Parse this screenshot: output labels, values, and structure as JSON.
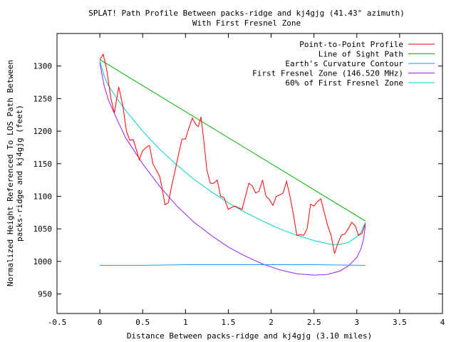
{
  "chart_data": {
    "type": "line",
    "title": "SPLAT! Path Profile Between packs-ridge and kj4gjg (41.43° azimuth)",
    "subtitle": "With First Fresnel Zone",
    "xlabel": "Distance Between packs-ridge and kj4gjg (3.10 miles)",
    "ylabel_lines": [
      "Normalized Height Referenced To LOS Path Between",
      "packs-ridge and kj4gjg (feet)"
    ],
    "xlim": [
      -0.5,
      4
    ],
    "ylim": [
      920,
      1350
    ],
    "x_ticks": [
      "-0.5",
      "0",
      "0.5",
      "1",
      "1.5",
      "2",
      "2.5",
      "3",
      "3.5",
      "4"
    ],
    "y_ticks": [
      "950",
      "1000",
      "1050",
      "1100",
      "1150",
      "1200",
      "1250",
      "1300"
    ],
    "legend_position": "top-right",
    "grid": false,
    "series": [
      {
        "name": "Point-to-Point Profile",
        "color": "#ff0000",
        "points": [
          [
            0,
            1310
          ],
          [
            0.04,
            1318
          ],
          [
            0.08,
            1295
          ],
          [
            0.13,
            1250
          ],
          [
            0.17,
            1228
          ],
          [
            0.22,
            1268
          ],
          [
            0.27,
            1238
          ],
          [
            0.31,
            1200
          ],
          [
            0.35,
            1186
          ],
          [
            0.39,
            1187
          ],
          [
            0.43,
            1170
          ],
          [
            0.46,
            1156
          ],
          [
            0.5,
            1170
          ],
          [
            0.55,
            1176
          ],
          [
            0.58,
            1178
          ],
          [
            0.62,
            1150
          ],
          [
            0.66,
            1140
          ],
          [
            0.7,
            1130
          ],
          [
            0.73,
            1110
          ],
          [
            0.76,
            1087
          ],
          [
            0.8,
            1090
          ],
          [
            0.84,
            1117
          ],
          [
            0.88,
            1140
          ],
          [
            0.92,
            1165
          ],
          [
            0.96,
            1188
          ],
          [
            1.0,
            1188
          ],
          [
            1.04,
            1205
          ],
          [
            1.08,
            1220
          ],
          [
            1.12,
            1210
          ],
          [
            1.15,
            1207
          ],
          [
            1.18,
            1222
          ],
          [
            1.21,
            1190
          ],
          [
            1.25,
            1140
          ],
          [
            1.29,
            1120
          ],
          [
            1.33,
            1120
          ],
          [
            1.37,
            1125
          ],
          [
            1.41,
            1100
          ],
          [
            1.45,
            1098
          ],
          [
            1.5,
            1080
          ],
          [
            1.54,
            1083
          ],
          [
            1.58,
            1085
          ],
          [
            1.62,
            1082
          ],
          [
            1.66,
            1080
          ],
          [
            1.7,
            1100
          ],
          [
            1.74,
            1120
          ],
          [
            1.78,
            1116
          ],
          [
            1.82,
            1105
          ],
          [
            1.86,
            1108
          ],
          [
            1.9,
            1125
          ],
          [
            1.94,
            1100
          ],
          [
            1.98,
            1095
          ],
          [
            2.02,
            1086
          ],
          [
            2.06,
            1100
          ],
          [
            2.1,
            1102
          ],
          [
            2.14,
            1105
          ],
          [
            2.18,
            1123
          ],
          [
            2.22,
            1100
          ],
          [
            2.26,
            1072
          ],
          [
            2.3,
            1040
          ],
          [
            2.34,
            1041
          ],
          [
            2.38,
            1040
          ],
          [
            2.42,
            1050
          ],
          [
            2.46,
            1088
          ],
          [
            2.5,
            1085
          ],
          [
            2.54,
            1092
          ],
          [
            2.58,
            1096
          ],
          [
            2.62,
            1075
          ],
          [
            2.66,
            1055
          ],
          [
            2.7,
            1040
          ],
          [
            2.74,
            1012
          ],
          [
            2.78,
            1028
          ],
          [
            2.82,
            1040
          ],
          [
            2.86,
            1042
          ],
          [
            2.9,
            1050
          ],
          [
            2.94,
            1060
          ],
          [
            2.98,
            1055
          ],
          [
            3.02,
            1040
          ],
          [
            3.06,
            1043
          ],
          [
            3.1,
            1058
          ]
        ]
      },
      {
        "name": "Line of Sight Path",
        "color": "#00b000",
        "points": [
          [
            0,
            1310
          ],
          [
            3.1,
            1062
          ]
        ]
      },
      {
        "name": "Earth's Curvature Contour",
        "color": "#1e90ff",
        "points": [
          [
            0,
            994
          ],
          [
            0.5,
            994
          ],
          [
            1.0,
            995
          ],
          [
            1.5,
            995
          ],
          [
            2.0,
            995
          ],
          [
            2.5,
            995
          ],
          [
            3.1,
            994
          ]
        ]
      },
      {
        "name": "First Fresnel Zone (146.520 MHz)",
        "color": "#a020f0",
        "points": [
          [
            0,
            1305
          ],
          [
            0.05,
            1270
          ],
          [
            0.1,
            1248
          ],
          [
            0.2,
            1218
          ],
          [
            0.3,
            1190
          ],
          [
            0.5,
            1150
          ],
          [
            0.7,
            1115
          ],
          [
            0.9,
            1085
          ],
          [
            1.1,
            1060
          ],
          [
            1.3,
            1040
          ],
          [
            1.5,
            1022
          ],
          [
            1.7,
            1008
          ],
          [
            1.9,
            996
          ],
          [
            2.1,
            987
          ],
          [
            2.3,
            981
          ],
          [
            2.5,
            979
          ],
          [
            2.65,
            980
          ],
          [
            2.8,
            985
          ],
          [
            2.9,
            993
          ],
          [
            3.0,
            1006
          ],
          [
            3.05,
            1020
          ],
          [
            3.08,
            1035
          ],
          [
            3.1,
            1055
          ]
        ]
      },
      {
        "name": "60% of First Fresnel Zone",
        "color": "#00d0d0",
        "points": [
          [
            0,
            1308
          ],
          [
            0.05,
            1285
          ],
          [
            0.1,
            1270
          ],
          [
            0.2,
            1250
          ],
          [
            0.3,
            1232
          ],
          [
            0.5,
            1200
          ],
          [
            0.7,
            1172
          ],
          [
            0.9,
            1148
          ],
          [
            1.1,
            1126
          ],
          [
            1.3,
            1107
          ],
          [
            1.5,
            1090
          ],
          [
            1.7,
            1075
          ],
          [
            1.9,
            1062
          ],
          [
            2.1,
            1050
          ],
          [
            2.3,
            1040
          ],
          [
            2.5,
            1032
          ],
          [
            2.7,
            1026
          ],
          [
            2.8,
            1026
          ],
          [
            2.9,
            1029
          ],
          [
            3.0,
            1038
          ],
          [
            3.05,
            1045
          ],
          [
            3.1,
            1060
          ]
        ]
      }
    ]
  }
}
